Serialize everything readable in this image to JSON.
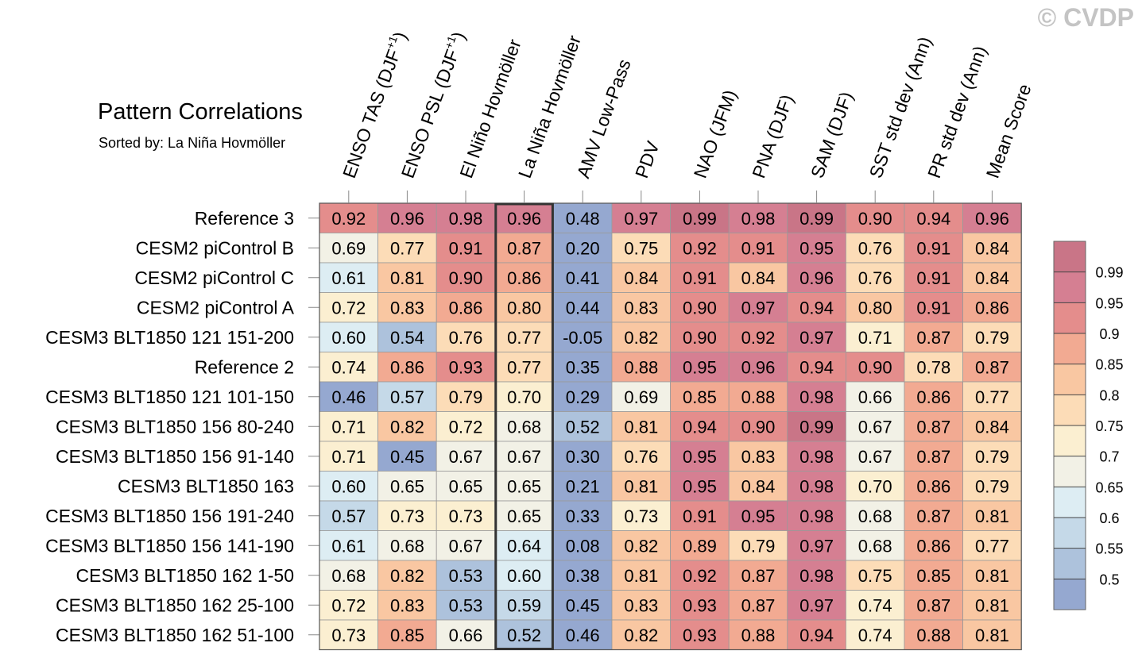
{
  "watermark": "© CVDP",
  "chart_data": {
    "type": "heatmap",
    "title": "Pattern Correlations",
    "subtitle": "Sorted by: La Niña Hovmöller",
    "highlighted_column": "La Niña Hovmöller",
    "columns": [
      {
        "label": "ENSO TAS (DJF",
        "sup": "+1",
        "suffix": ")"
      },
      {
        "label": "ENSO PSL (DJF",
        "sup": "+1",
        "suffix": ")"
      },
      {
        "label": "El Niño Hovmöller",
        "sup": "",
        "suffix": ""
      },
      {
        "label": "La Niña Hovmöller",
        "sup": "",
        "suffix": ""
      },
      {
        "label": "AMV Low-Pass",
        "sup": "",
        "suffix": ""
      },
      {
        "label": "PDV",
        "sup": "",
        "suffix": ""
      },
      {
        "label": "NAO (JFM)",
        "sup": "",
        "suffix": ""
      },
      {
        "label": "PNA (DJF)",
        "sup": "",
        "suffix": ""
      },
      {
        "label": "SAM (DJF)",
        "sup": "",
        "suffix": ""
      },
      {
        "label": "SST std dev (Ann)",
        "sup": "",
        "suffix": ""
      },
      {
        "label": "PR std dev (Ann)",
        "sup": "",
        "suffix": ""
      },
      {
        "label": "Mean Score",
        "sup": "",
        "suffix": ""
      }
    ],
    "rows": [
      {
        "name": "Reference 3",
        "values": [
          "0.92",
          "0.96",
          "0.98",
          "0.96",
          "0.48",
          "0.97",
          "0.99",
          "0.98",
          "0.99",
          "0.90",
          "0.94",
          "0.96"
        ]
      },
      {
        "name": "CESM2 piControl B",
        "values": [
          "0.69",
          "0.77",
          "0.91",
          "0.87",
          "0.20",
          "0.75",
          "0.92",
          "0.91",
          "0.95",
          "0.76",
          "0.91",
          "0.84"
        ]
      },
      {
        "name": "CESM2 piControl C",
        "values": [
          "0.61",
          "0.81",
          "0.90",
          "0.86",
          "0.41",
          "0.84",
          "0.91",
          "0.84",
          "0.96",
          "0.76",
          "0.91",
          "0.84"
        ]
      },
      {
        "name": "CESM2 piControl A",
        "values": [
          "0.72",
          "0.83",
          "0.86",
          "0.80",
          "0.44",
          "0.83",
          "0.90",
          "0.97",
          "0.94",
          "0.80",
          "0.91",
          "0.86"
        ]
      },
      {
        "name": "CESM3 BLT1850 121 151-200",
        "values": [
          "0.60",
          "0.54",
          "0.76",
          "0.77",
          "-0.05",
          "0.82",
          "0.90",
          "0.92",
          "0.97",
          "0.71",
          "0.87",
          "0.79"
        ]
      },
      {
        "name": "Reference 2",
        "values": [
          "0.74",
          "0.86",
          "0.93",
          "0.77",
          "0.35",
          "0.88",
          "0.95",
          "0.96",
          "0.94",
          "0.90",
          "0.78",
          "0.87"
        ]
      },
      {
        "name": "CESM3 BLT1850 121 101-150",
        "values": [
          "0.46",
          "0.57",
          "0.79",
          "0.70",
          "0.29",
          "0.69",
          "0.85",
          "0.88",
          "0.98",
          "0.66",
          "0.86",
          "0.77"
        ]
      },
      {
        "name": "CESM3 BLT1850 156 80-240",
        "values": [
          "0.71",
          "0.82",
          "0.72",
          "0.68",
          "0.52",
          "0.81",
          "0.94",
          "0.90",
          "0.99",
          "0.67",
          "0.87",
          "0.84"
        ]
      },
      {
        "name": "CESM3 BLT1850 156 91-140",
        "values": [
          "0.71",
          "0.45",
          "0.67",
          "0.67",
          "0.30",
          "0.76",
          "0.95",
          "0.83",
          "0.98",
          "0.67",
          "0.87",
          "0.79"
        ]
      },
      {
        "name": "CESM3 BLT1850 163",
        "values": [
          "0.60",
          "0.65",
          "0.65",
          "0.65",
          "0.21",
          "0.81",
          "0.95",
          "0.84",
          "0.98",
          "0.70",
          "0.86",
          "0.79"
        ]
      },
      {
        "name": "CESM3 BLT1850 156 191-240",
        "values": [
          "0.57",
          "0.73",
          "0.73",
          "0.65",
          "0.33",
          "0.73",
          "0.91",
          "0.95",
          "0.98",
          "0.68",
          "0.87",
          "0.81"
        ]
      },
      {
        "name": "CESM3 BLT1850 156 141-190",
        "values": [
          "0.61",
          "0.68",
          "0.67",
          "0.64",
          "0.08",
          "0.82",
          "0.89",
          "0.79",
          "0.97",
          "0.68",
          "0.86",
          "0.77"
        ]
      },
      {
        "name": "CESM3 BLT1850 162 1-50",
        "values": [
          "0.68",
          "0.82",
          "0.53",
          "0.60",
          "0.38",
          "0.81",
          "0.92",
          "0.87",
          "0.98",
          "0.75",
          "0.85",
          "0.81"
        ]
      },
      {
        "name": "CESM3 BLT1850 162 25-100",
        "values": [
          "0.72",
          "0.83",
          "0.53",
          "0.59",
          "0.45",
          "0.83",
          "0.93",
          "0.87",
          "0.97",
          "0.74",
          "0.87",
          "0.81"
        ]
      },
      {
        "name": "CESM3 BLT1850 162 51-100",
        "values": [
          "0.73",
          "0.85",
          "0.66",
          "0.52",
          "0.46",
          "0.82",
          "0.93",
          "0.88",
          "0.94",
          "0.74",
          "0.88",
          "0.81"
        ]
      }
    ],
    "colorbar": {
      "ticks": [
        "0.99",
        "0.95",
        "0.9",
        "0.85",
        "0.8",
        "0.75",
        "0.7",
        "0.65",
        "0.6",
        "0.55",
        "0.5"
      ],
      "levels": [
        0.5,
        0.55,
        0.6,
        0.65,
        0.7,
        0.75,
        0.8,
        0.85,
        0.9,
        0.95,
        0.99
      ],
      "colors": [
        "#95a8d0",
        "#adc2dc",
        "#c5d9e8",
        "#ddedf3",
        "#f2f1e6",
        "#fbefd1",
        "#fcdcb7",
        "#f9c7a2",
        "#f2aa92",
        "#e48d8c",
        "#d57f92",
        "#c97587"
      ]
    }
  }
}
